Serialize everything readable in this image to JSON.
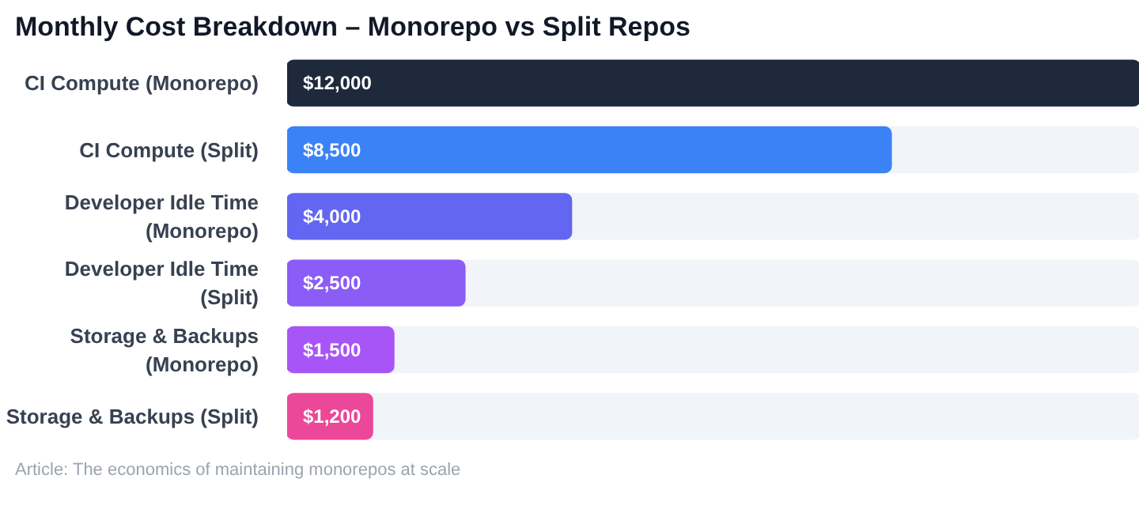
{
  "chart_data": {
    "type": "bar",
    "orientation": "horizontal",
    "title": "Monthly Cost Breakdown – Monorepo vs Split Repos",
    "categories": [
      "CI Compute (Monorepo)",
      "CI Compute (Split)",
      "Developer Idle Time (Monorepo)",
      "Developer Idle Time (Split)",
      "Storage & Backups (Monorepo)",
      "Storage & Backups (Split)"
    ],
    "values": [
      12000,
      8500,
      4000,
      2500,
      1500,
      1200
    ],
    "colors": [
      "#1e293b",
      "#3b82f6",
      "#6366f1",
      "#8b5cf6",
      "#a855f7",
      "#ec4899"
    ],
    "value_labels": [
      "$12,000",
      "$8,500",
      "$4,000",
      "$2,500",
      "$1,500",
      "$1,200"
    ],
    "xlim": [
      0,
      12000
    ],
    "tick_labels": "y",
    "annotations": [
      "Article: The economics of maintaining monorepos at scale"
    ]
  }
}
